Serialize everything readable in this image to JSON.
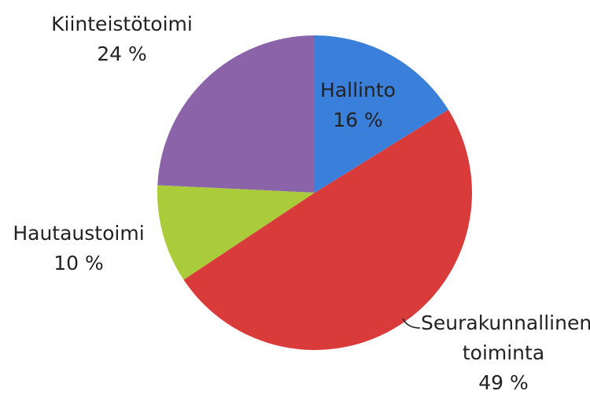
{
  "chart_data": {
    "type": "pie",
    "categories": [
      "Hallinto",
      "Seurakunnallinen toiminta",
      "Hautaustoimi",
      "Kiinteistötoimi"
    ],
    "values": [
      16,
      49,
      10,
      24
    ],
    "value_labels": [
      "16 %",
      "49 %",
      "10 %",
      "24 %"
    ],
    "colors": [
      "#3a7fd9",
      "#d93b3b",
      "#aacc3a",
      "#8b63a9"
    ]
  }
}
